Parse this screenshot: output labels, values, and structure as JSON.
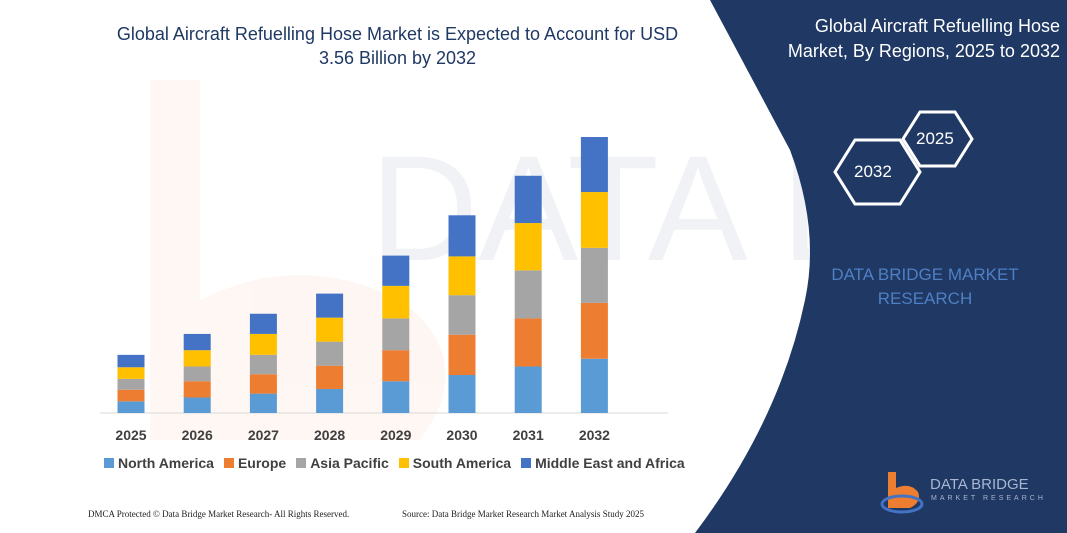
{
  "header": {
    "title": "Global Aircraft Refuelling Hose Market is Expected to Account for USD 3.56 Billion by 2032",
    "side_title": "Global Aircraft Refuelling Hose Market, By Regions, 2025 to 2032"
  },
  "side_panel": {
    "hex_start": "2025",
    "hex_end": "2032",
    "brand": "DATA BRIDGE MARKET RESEARCH",
    "logo_text": "DATA BRIDGE",
    "logo_sub": "MARKET RESEARCH",
    "panel_color": "#1f3864"
  },
  "footer": {
    "left": "DMCA Protected © Data Bridge Market Research-  All Rights Reserved.",
    "right": "Source: Data Bridge Market Research  Market Analysis Study 2025"
  },
  "chart_data": {
    "type": "bar",
    "stacked": true,
    "title": "Global Aircraft Refuelling Hose Market is Expected to Account for USD 3.56 Billion by 2032",
    "xlabel": "",
    "ylabel": "",
    "y_axis_shown": false,
    "grid": false,
    "legend_position": "bottom",
    "categories": [
      "2025",
      "2026",
      "2027",
      "2028",
      "2029",
      "2030",
      "2031",
      "2032"
    ],
    "series": [
      {
        "name": "North America",
        "color": "#5b9bd5",
        "values": [
          0.15,
          0.2,
          0.25,
          0.31,
          0.41,
          0.49,
          0.6,
          0.7
        ]
      },
      {
        "name": "Europe",
        "color": "#ed7d31",
        "values": [
          0.15,
          0.21,
          0.25,
          0.3,
          0.4,
          0.52,
          0.62,
          0.72
        ]
      },
      {
        "name": "Asia Pacific",
        "color": "#a5a5a5",
        "values": [
          0.14,
          0.19,
          0.25,
          0.31,
          0.41,
          0.51,
          0.62,
          0.71
        ]
      },
      {
        "name": "South America",
        "color": "#ffc000",
        "values": [
          0.15,
          0.21,
          0.27,
          0.31,
          0.42,
          0.5,
          0.61,
          0.72
        ]
      },
      {
        "name": "Middle East and Africa",
        "color": "#4472c4",
        "values": [
          0.16,
          0.21,
          0.26,
          0.31,
          0.39,
          0.53,
          0.61,
          0.71
        ]
      }
    ],
    "ylim": [
      0,
      3.6
    ]
  }
}
